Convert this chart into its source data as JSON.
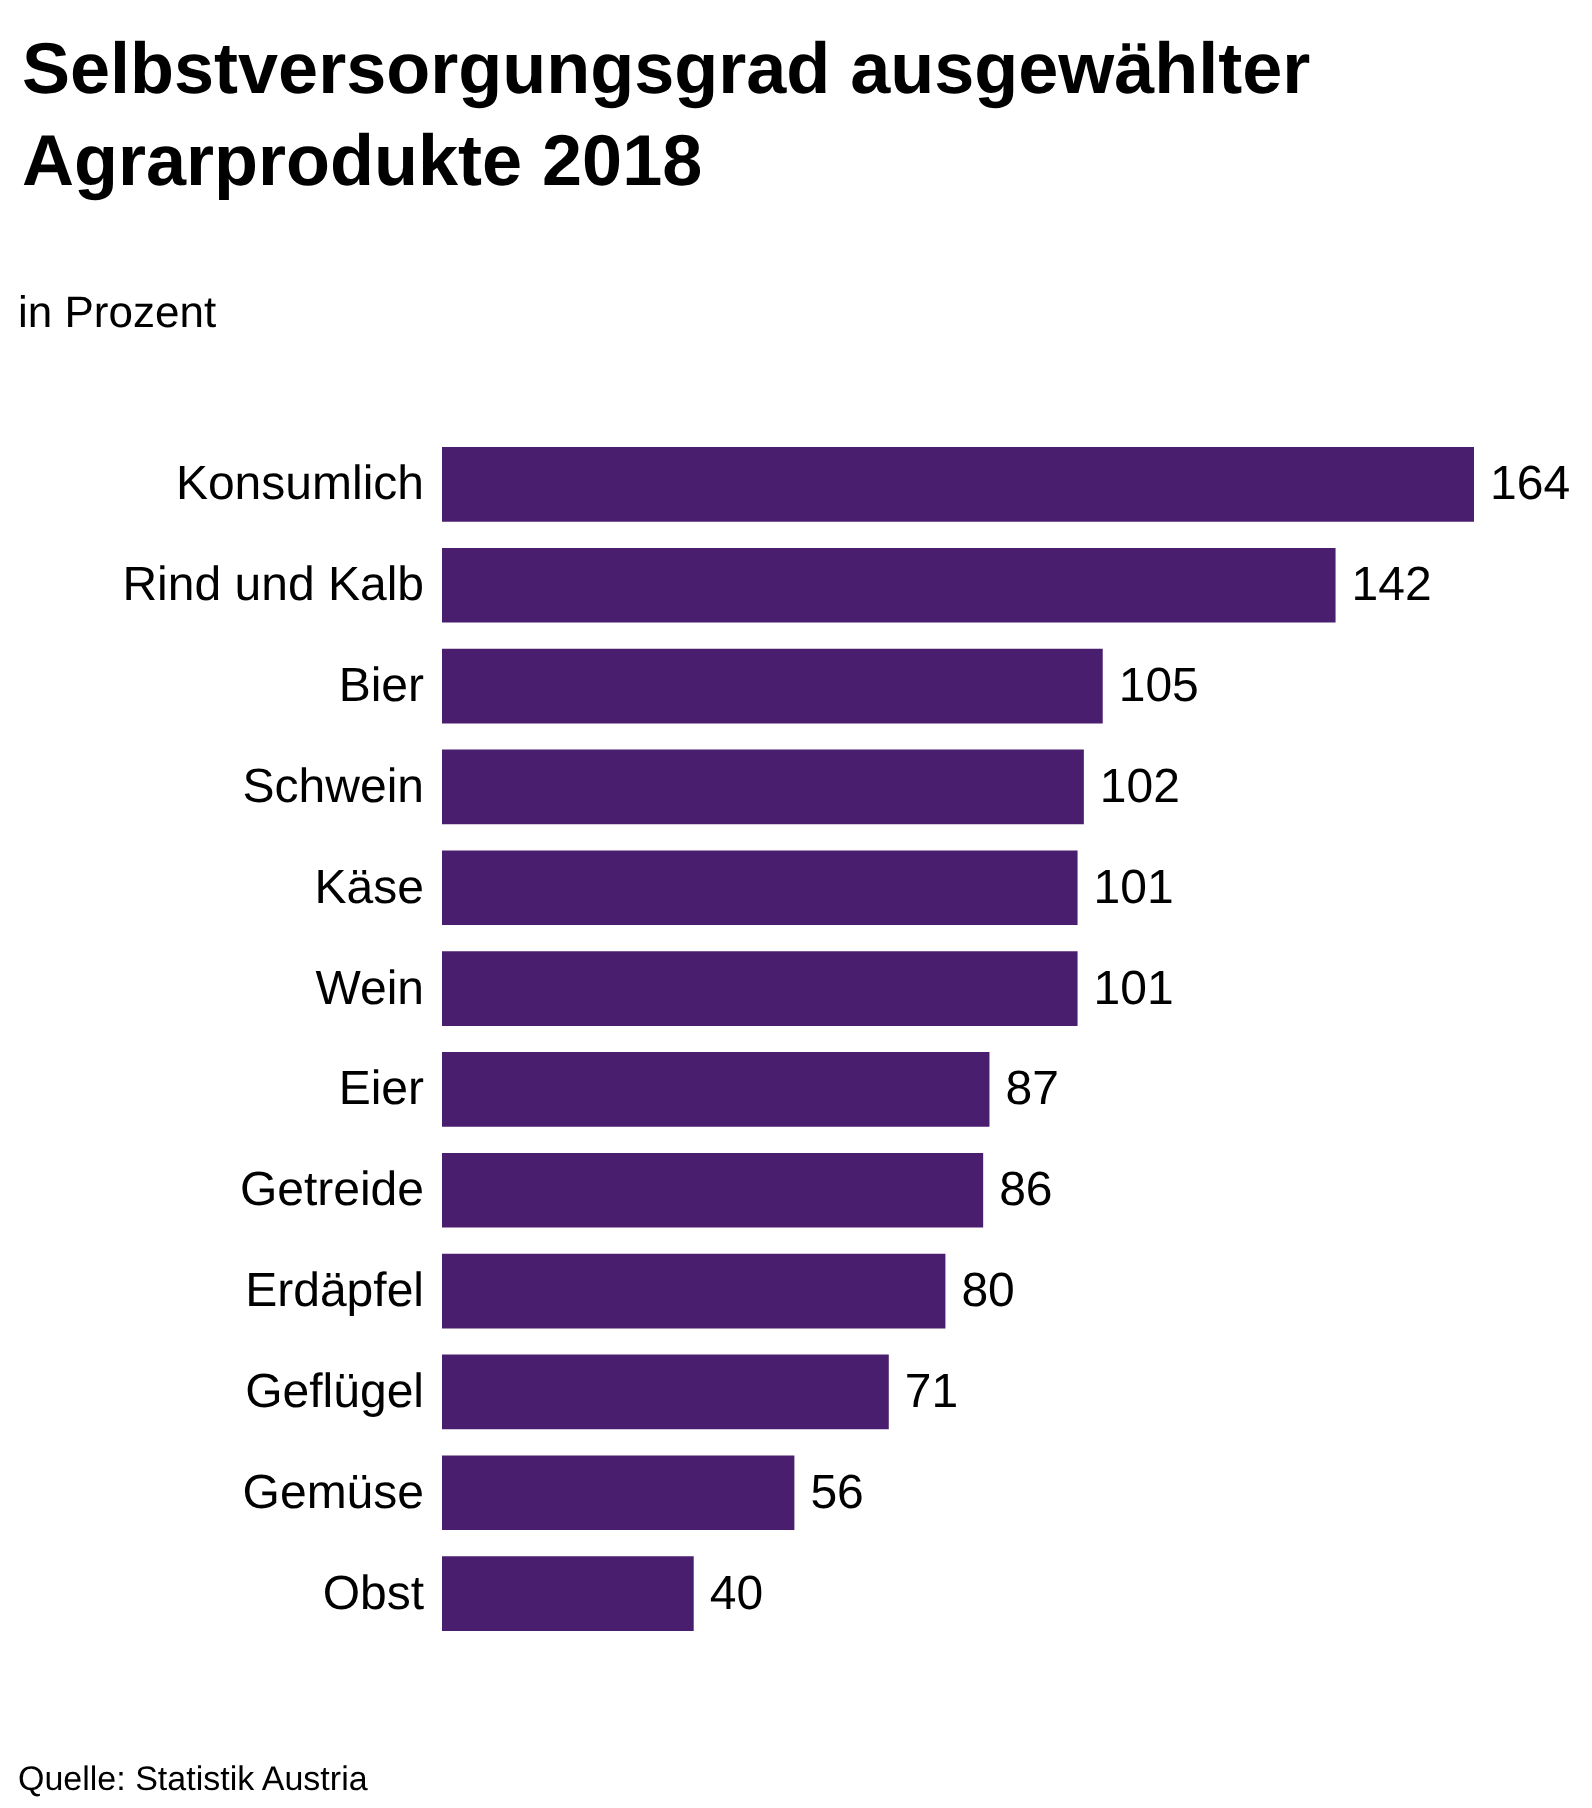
{
  "chart_data": {
    "type": "bar",
    "orientation": "horizontal",
    "title": "Selbstversorgungsgrad ausgewählter Agrarprodukte 2018",
    "subtitle": "in Prozent",
    "categories": [
      "Konsumlich",
      "Rind und Kalb",
      "Bier",
      "Schwein",
      "Käse",
      "Wein",
      "Eier",
      "Getreide",
      "Erdäpfel",
      "Geflügel",
      "Gemüse",
      "Obst"
    ],
    "values": [
      164,
      142,
      105,
      102,
      101,
      101,
      87,
      86,
      80,
      71,
      56,
      40
    ],
    "color": "#4a1e6e",
    "data_labels": true,
    "tick_labels": "y",
    "annotations": [
      "Quelle: Statistik Austria"
    ]
  }
}
